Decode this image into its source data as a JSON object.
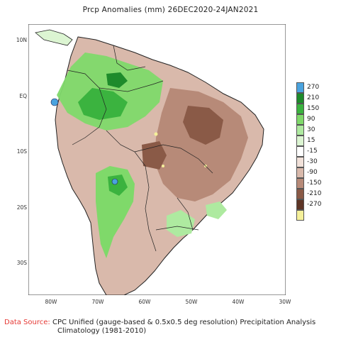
{
  "title": "Prcp Anomalies (mm) 26DEC2020-24JAN2021",
  "lat_labels": [
    "10N",
    "EQ",
    "10S",
    "20S",
    "30S"
  ],
  "lon_labels": [
    "80W",
    "70W",
    "60W",
    "50W",
    "40W",
    "30W"
  ],
  "legend": {
    "levels": [
      {
        "label": "270",
        "color": "#4aa3df"
      },
      {
        "label": "210",
        "color": "#1e8b2b"
      },
      {
        "label": "150",
        "color": "#3bb33f"
      },
      {
        "label": "90",
        "color": "#7fd96a"
      },
      {
        "label": "30",
        "color": "#aeeaa0"
      },
      {
        "label": "15",
        "color": "#dcf5d2"
      },
      {
        "label": "-15",
        "color": "#ffffff"
      },
      {
        "label": "-30",
        "color": "#f1e1d9"
      },
      {
        "label": "-90",
        "color": "#d9b9ab"
      },
      {
        "label": "-150",
        "color": "#b78a78"
      },
      {
        "label": "-210",
        "color": "#8a5a47"
      },
      {
        "label": "-270",
        "color": "#5e3526"
      },
      {
        "label": "",
        "color": "#f5f09a"
      }
    ]
  },
  "footer": {
    "source_label": "Data Source:",
    "source_text": "CPC Unified (gauge-based & 0.5x0.5 deg resolution) Precipitation Analysis",
    "climatology": "Climatology (1981-2010)"
  }
}
